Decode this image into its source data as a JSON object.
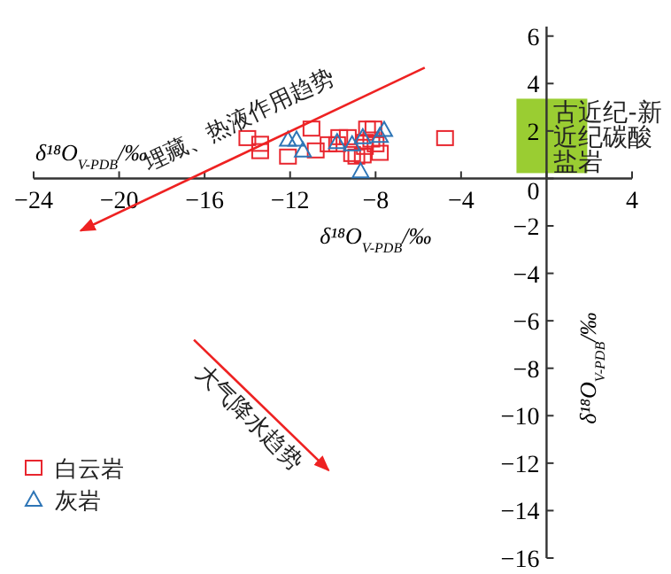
{
  "chart_data": {
    "type": "scatter",
    "xlabel": "δ¹⁸O$_{V-PDB}$/‰",
    "ylabel": "δ¹⁸O$_{V-PDB}$/‰",
    "annotations": [
      "δ¹⁸O$_{V-PDB}$/‰",
      "古近纪-新近纪碳酸盐岩"
    ],
    "xlim": [
      -24,
      4
    ],
    "ylim": [
      -16,
      6.4
    ],
    "xticks": [
      -24,
      -20,
      -16,
      -12,
      -8,
      -4,
      {
        "value": 0,
        "label": null
      },
      4
    ],
    "yticks": [
      6,
      4,
      2,
      0,
      -2,
      -4,
      -6,
      -8,
      -10,
      -12,
      -14,
      -16
    ],
    "legend": "bottom left",
    "grid": false,
    "series": [
      {
        "name": "白云岩",
        "marker": "square",
        "color": "#e8262e",
        "x": [
          -14.0,
          -13.4,
          -13.4,
          -12.1,
          -11.0,
          -10.8,
          -10.2,
          -9.7,
          -9.3,
          -9.8,
          -9.1,
          -8.9,
          -8.6,
          -8.5,
          -8.4,
          -8.1,
          -8.2,
          -8.0,
          -7.8,
          -8.5,
          -4.75
        ],
        "values": [
          1.7,
          1.46,
          1.15,
          0.92,
          2.1,
          1.18,
          1.44,
          1.74,
          1.74,
          1.44,
          1.03,
          0.92,
          0.97,
          1.33,
          2.1,
          2.1,
          1.64,
          1.44,
          1.08,
          1.54,
          1.7
        ]
      },
      {
        "name": "灰岩",
        "marker": "triangle",
        "color": "#2e75b6",
        "x": [
          -12.1,
          -11.7,
          -11.4,
          -9.8,
          -9.1,
          -8.7,
          -8.6,
          -7.6,
          -7.8
        ],
        "values": [
          1.64,
          1.64,
          1.18,
          1.54,
          1.44,
          0.31,
          1.74,
          2.05,
          1.8
        ]
      },
      {
        "type": "line",
        "name": "埋藏、热液作用趋势",
        "color": "#ee2222",
        "x": [
          -5.7,
          -21.8
        ],
        "values": [
          4.67,
          -2.2
        ]
      },
      {
        "type": "line",
        "name": "大气降水趋势",
        "color": "#ee2222",
        "x": [
          -16.5,
          -10.2
        ],
        "values": [
          -6.8,
          -12.3
        ]
      }
    ]
  }
}
